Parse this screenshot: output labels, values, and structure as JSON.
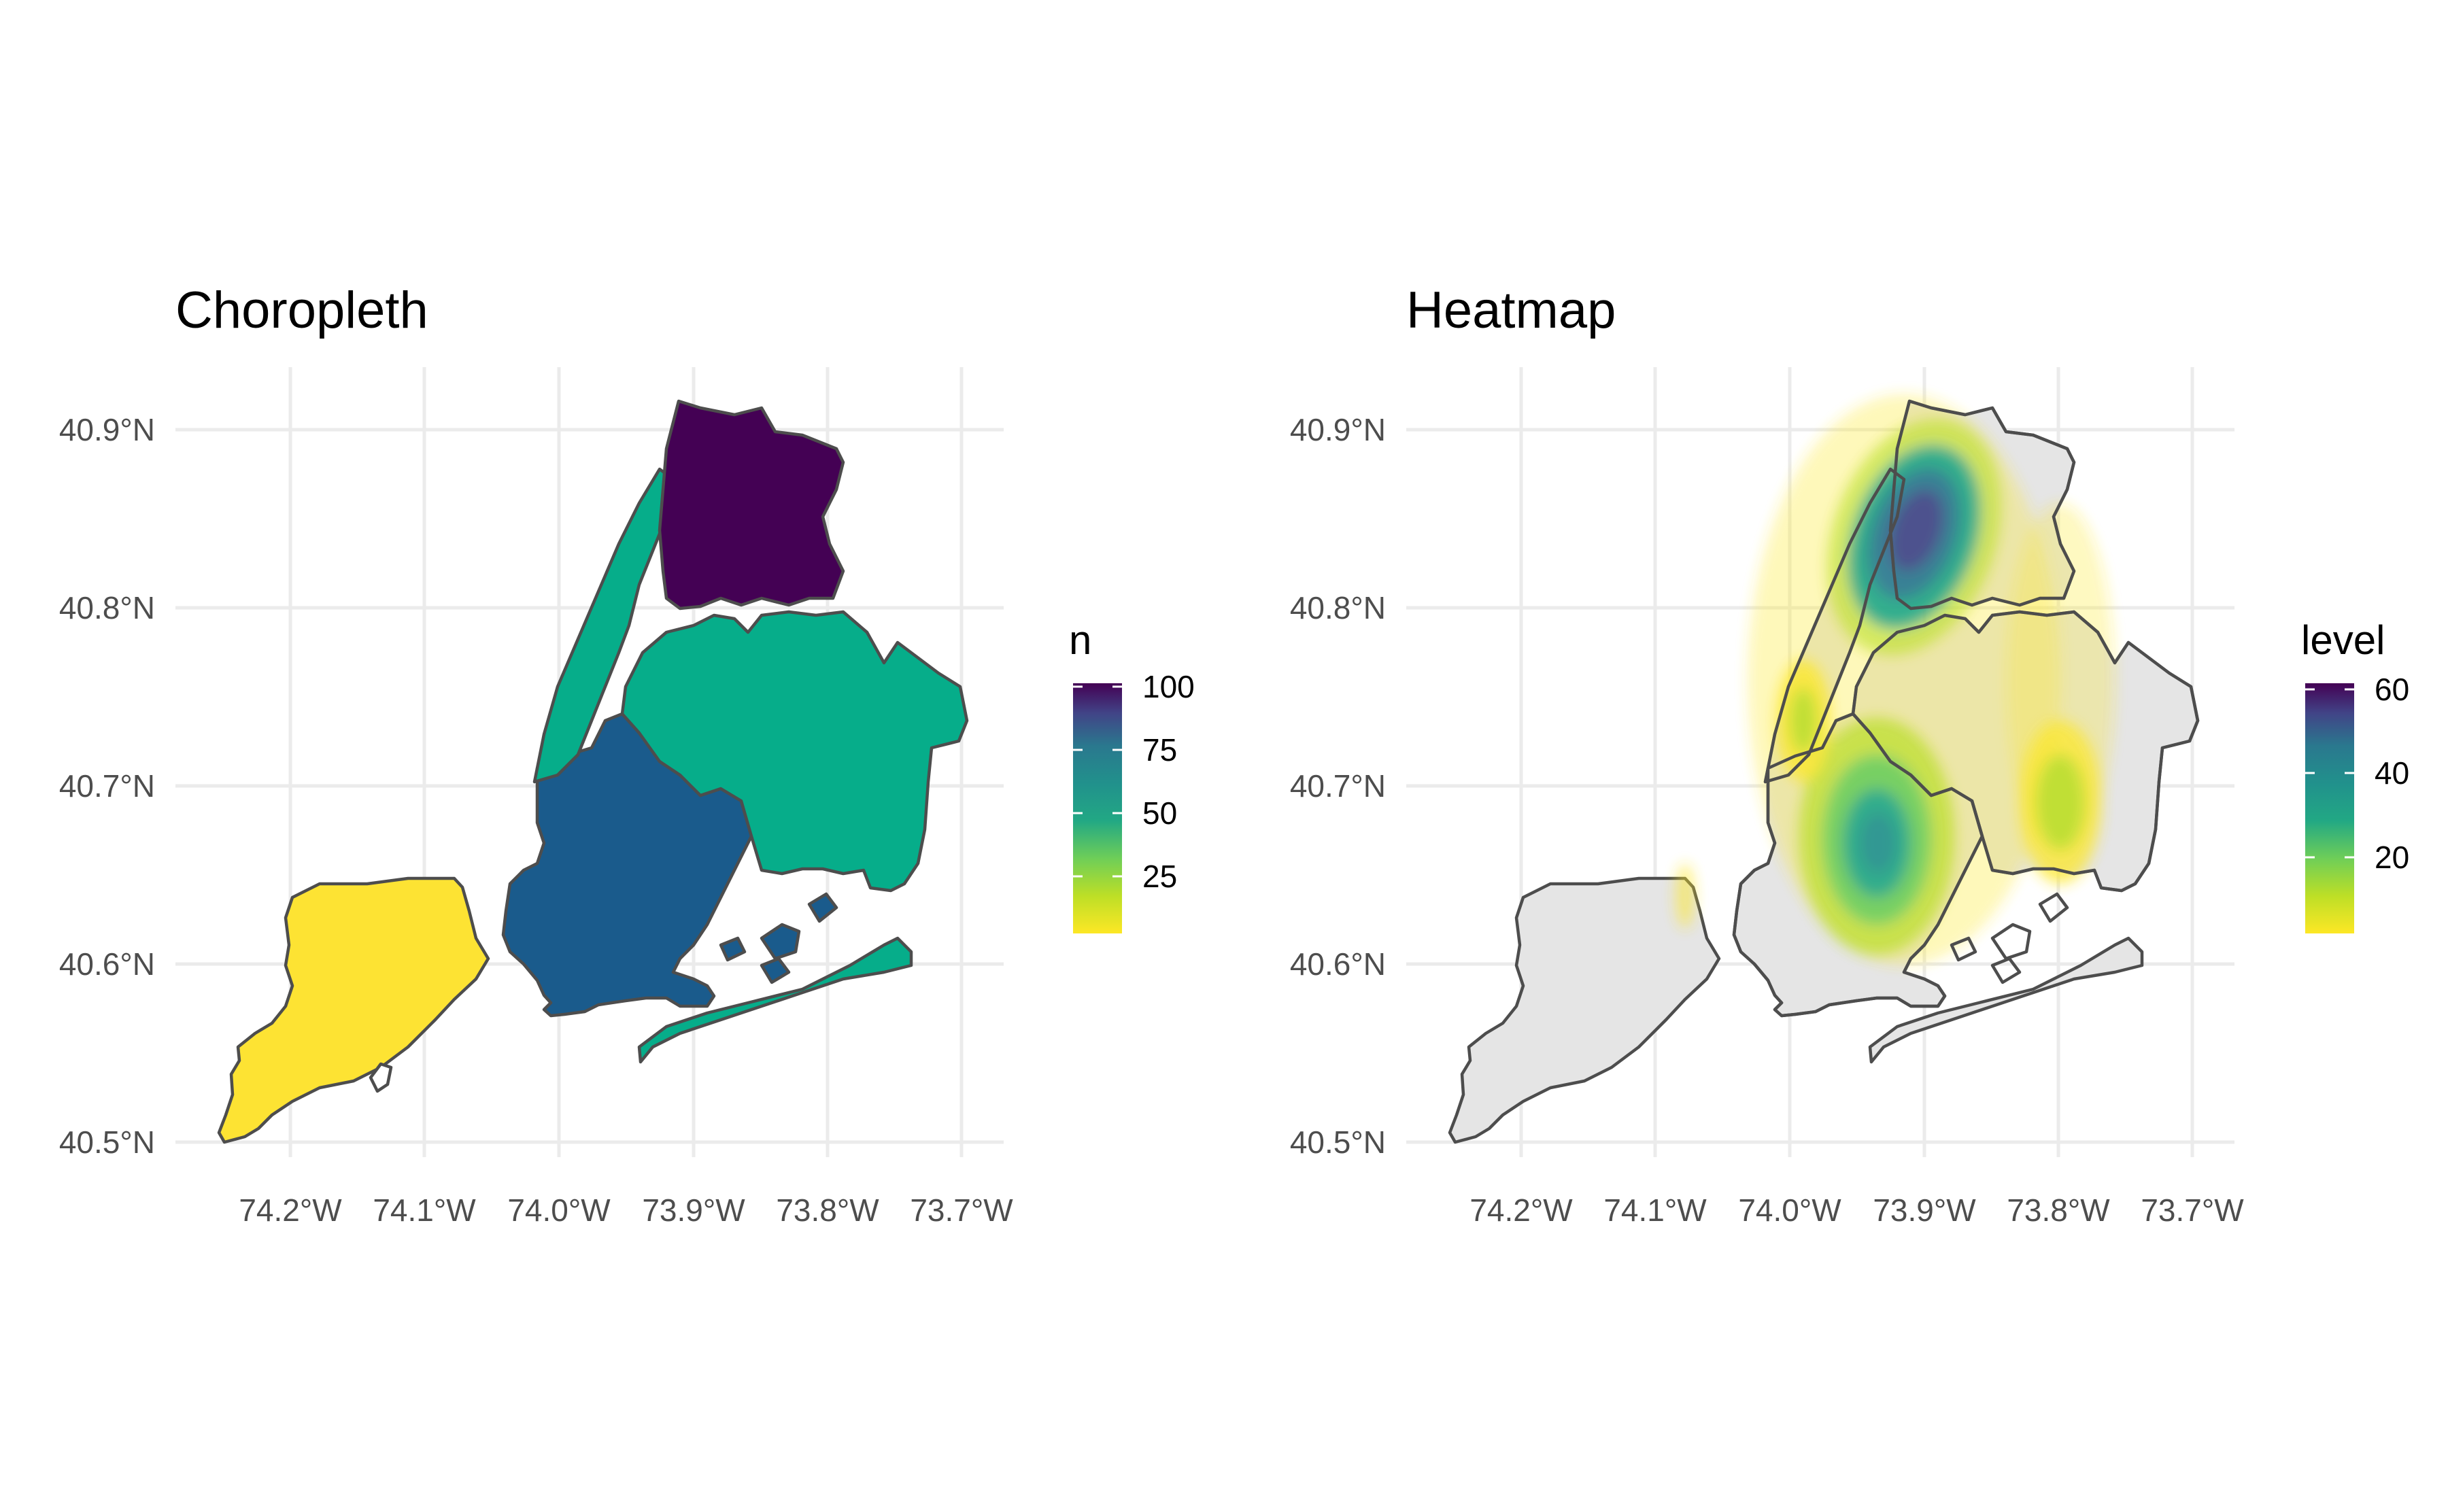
{
  "chart_data": [
    {
      "type": "choropleth",
      "title": "Choropleth",
      "xlabel": "",
      "ylabel": "",
      "x_ticks": [
        "74.2°W",
        "74.1°W",
        "74.0°W",
        "73.9°W",
        "73.8°W",
        "73.7°W"
      ],
      "y_ticks": [
        "40.5°N",
        "40.6°N",
        "40.7°N",
        "40.8°N",
        "40.9°N"
      ],
      "xlim": [
        -74.28,
        -73.67
      ],
      "ylim": [
        40.49,
        40.92
      ],
      "grid": true,
      "legend": {
        "title": "n",
        "placement": "right",
        "ticks": [
          "25",
          "50",
          "75",
          "100"
        ],
        "range": [
          10,
          100
        ],
        "palette": "viridis (reversed)"
      },
      "regions": [
        {
          "name": "Bronx",
          "value": 100,
          "color": "#440154"
        },
        {
          "name": "Manhattan",
          "value": 40,
          "color": "#06ad8a"
        },
        {
          "name": "Queens",
          "value": 40,
          "color": "#06ad8a"
        },
        {
          "name": "Brooklyn",
          "value": 70,
          "color": "#1a5b8c"
        },
        {
          "name": "Staten Island",
          "value": 10,
          "color": "#fde333"
        }
      ]
    },
    {
      "type": "heatmap",
      "title": "Heatmap",
      "xlabel": "",
      "ylabel": "",
      "x_ticks": [
        "74.2°W",
        "74.1°W",
        "74.0°W",
        "73.9°W",
        "73.8°W",
        "73.7°W"
      ],
      "y_ticks": [
        "40.5°N",
        "40.6°N",
        "40.7°N",
        "40.8°N",
        "40.9°N"
      ],
      "xlim": [
        -74.28,
        -73.67
      ],
      "ylim": [
        40.49,
        40.92
      ],
      "grid": true,
      "base_fill": "#e5e5e5",
      "legend": {
        "title": "level",
        "placement": "right",
        "ticks": [
          "20",
          "40",
          "60"
        ],
        "range": [
          0,
          62
        ],
        "palette": "viridis (reversed)"
      },
      "density_peaks": [
        {
          "lon": -73.9,
          "lat": 40.84,
          "level": 62
        },
        {
          "lon": -73.93,
          "lat": 40.67,
          "level": 35
        },
        {
          "lon": -73.78,
          "lat": 40.69,
          "level": 20
        },
        {
          "lon": -74.0,
          "lat": 40.74,
          "level": 18
        }
      ]
    }
  ]
}
